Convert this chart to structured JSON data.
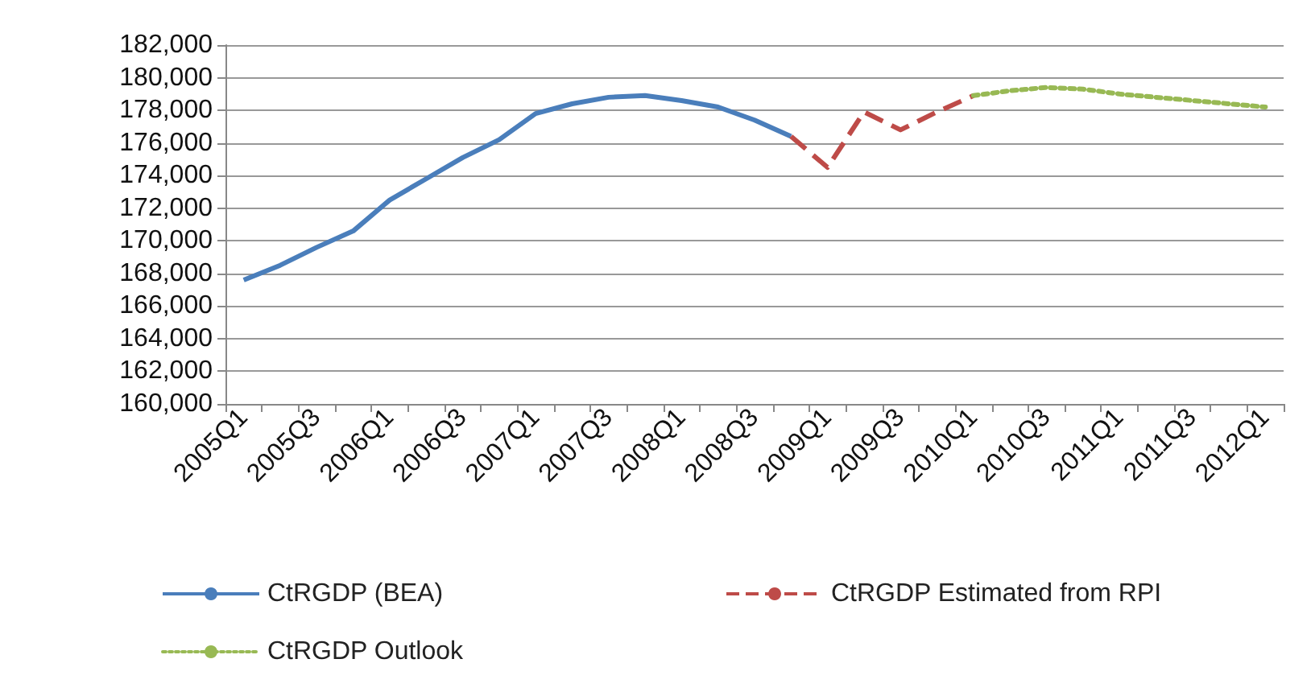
{
  "chart_data": {
    "type": "line",
    "categories": [
      "2005Q1",
      null,
      "2005Q3",
      null,
      "2006Q1",
      null,
      "2006Q3",
      null,
      "2007Q1",
      null,
      "2007Q3",
      null,
      "2008Q1",
      null,
      "2008Q3",
      null,
      "2009Q1",
      null,
      "2009Q3",
      null,
      "2010Q1",
      null,
      "2010Q3",
      null,
      "2011Q1",
      null,
      "2011Q3",
      null,
      "2012Q1"
    ],
    "series": [
      {
        "name": "CtRGDP (BEA)",
        "color": "#4a7ebb",
        "line_style": "solid",
        "values": [
          167600,
          168500,
          169600,
          170600,
          172500,
          173800,
          175100,
          176200,
          177800,
          178400,
          178800,
          178900,
          178600,
          178200,
          177400,
          176400,
          null,
          null,
          null,
          null,
          null,
          null,
          null,
          null,
          null,
          null,
          null,
          null,
          null
        ]
      },
      {
        "name": "CtRGDP Estimated from RPI",
        "color": "#be4b48",
        "line_style": "dashed",
        "values": [
          null,
          null,
          null,
          null,
          null,
          null,
          null,
          null,
          null,
          null,
          null,
          null,
          null,
          null,
          null,
          176400,
          174500,
          177900,
          176800,
          177900,
          178900,
          null,
          null,
          null,
          null,
          null,
          null,
          null,
          null
        ]
      },
      {
        "name": "CtRGDP Outlook",
        "color": "#98b954",
        "line_style": "dotted",
        "values": [
          null,
          null,
          null,
          null,
          null,
          null,
          null,
          null,
          null,
          null,
          null,
          null,
          null,
          null,
          null,
          null,
          null,
          null,
          null,
          null,
          178900,
          179200,
          179400,
          179300,
          179000,
          178800,
          178600,
          178400,
          178200
        ]
      }
    ],
    "ylim": [
      160000,
      182000
    ],
    "yticks": [
      {
        "value": 160000,
        "label": "160,000"
      },
      {
        "value": 162000,
        "label": "162,000"
      },
      {
        "value": 164000,
        "label": "164,000"
      },
      {
        "value": 166000,
        "label": "166,000"
      },
      {
        "value": 168000,
        "label": "168,000"
      },
      {
        "value": 170000,
        "label": "170,000"
      },
      {
        "value": 172000,
        "label": "172,000"
      },
      {
        "value": 174000,
        "label": "174,000"
      },
      {
        "value": 176000,
        "label": "176,000"
      },
      {
        "value": 178000,
        "label": "178,000"
      },
      {
        "value": 180000,
        "label": "180,000"
      },
      {
        "value": 182000,
        "label": "182,000"
      }
    ],
    "grid": "y",
    "legend": "bottom",
    "marker": "none"
  }
}
